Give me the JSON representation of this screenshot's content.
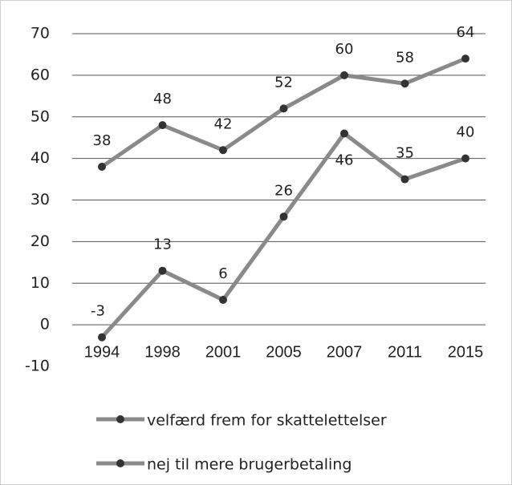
{
  "chart_data": {
    "type": "line",
    "categories": [
      "1994",
      "1998",
      "2001",
      "2005",
      "2007",
      "2011",
      "2015"
    ],
    "series": [
      {
        "name": "velfærd frem for skattelettelser",
        "color": "#8a8a8a",
        "values": [
          38,
          48,
          42,
          52,
          60,
          58,
          64
        ]
      },
      {
        "name": "nej til mere brugerbetaling",
        "color": "#8a8a8a",
        "values": [
          -3,
          13,
          6,
          26,
          46,
          35,
          40
        ]
      }
    ],
    "ylim": [
      -10,
      70
    ],
    "yticks": [
      -10,
      0,
      10,
      20,
      30,
      40,
      50,
      60,
      70
    ],
    "grid": true,
    "legend": "bottom"
  }
}
